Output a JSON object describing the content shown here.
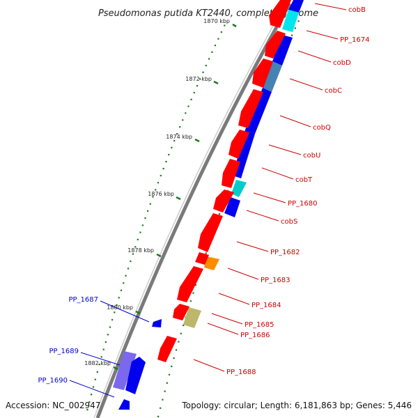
{
  "title": "Pseudomonas putida KT2440, complete genome",
  "footer": {
    "accession": "Accession: NC_002947",
    "summary": "Topology: circular; Length: 6,181,863 bp; Genes: 5,446"
  },
  "colors": {
    "forward_gene": "#ff0000",
    "reverse_gene": "#0000ee",
    "right_label": "#cc0000",
    "left_label": "#0000cc",
    "tick_mark": "#1a7a1a",
    "backbone": "#808080"
  },
  "ticks": [
    "1870 kbp",
    "1872 kbp",
    "1874 kbp",
    "1876 kbp",
    "1878 kbp",
    "1880 kbp",
    "1882 kbp"
  ],
  "right_labels": [
    "cobB",
    "PP_1674",
    "cobD",
    "cobC",
    "cobQ",
    "cobU",
    "cobT",
    "PP_1680",
    "cobS",
    "PP_1682",
    "PP_1683",
    "PP_1684",
    "PP_1685",
    "PP_1686",
    "PP_1688"
  ],
  "left_labels": [
    "PP_1687",
    "PP_1689",
    "PP_1690"
  ]
}
